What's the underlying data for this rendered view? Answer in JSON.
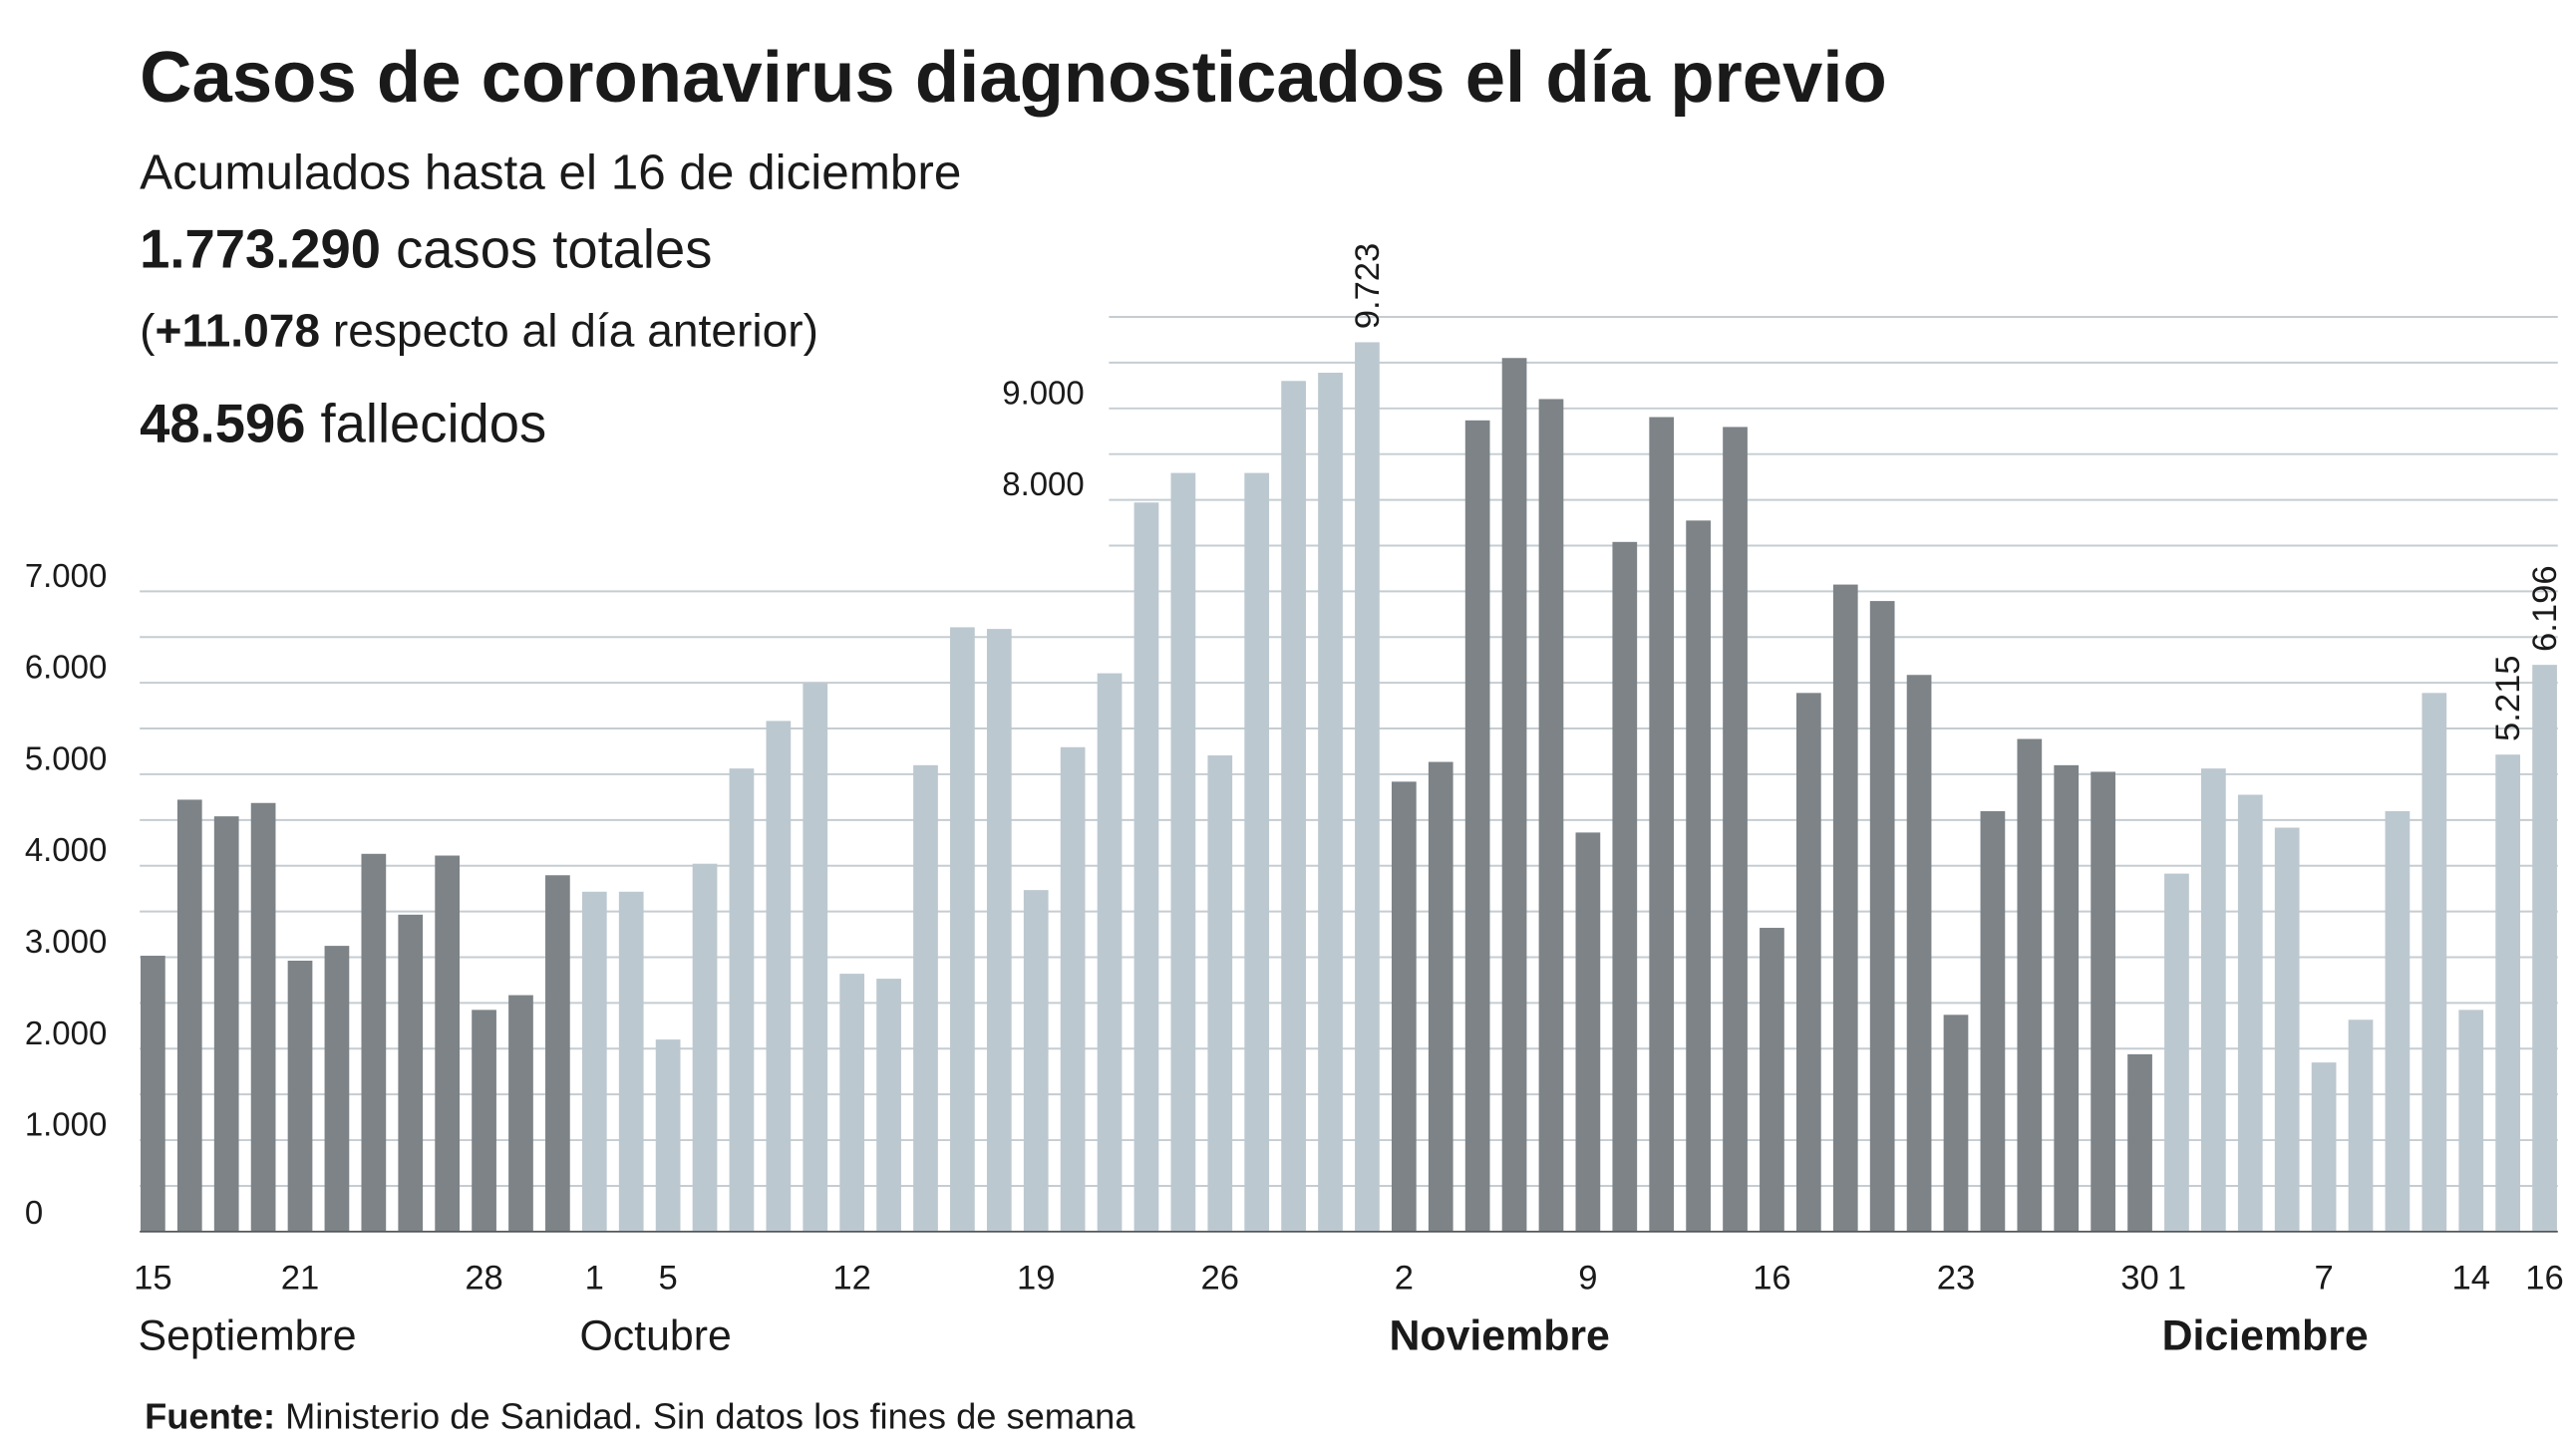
{
  "chart_data": {
    "type": "bar",
    "title": "Casos de coronavirus diagnosticados el día previo",
    "subtitle": "Acumulados hasta el 16 de diciembre",
    "stats": [
      [
        "",
        "1.773.290",
        " casos totales"
      ],
      [
        "(",
        "+11.078",
        " respecto al día anterior)"
      ],
      [
        "",
        "48.596",
        " fallecidos"
      ]
    ],
    "source": [
      "Fuente:",
      " Ministerio de Sanidad. Sin datos los fines de semana"
    ],
    "ylim": [
      0,
      10000
    ],
    "yticks": [
      {
        "value": 0,
        "label": "0"
      },
      {
        "value": 1000,
        "label": "1.000"
      },
      {
        "value": 2000,
        "label": "2.000"
      },
      {
        "value": 3000,
        "label": "3.000"
      },
      {
        "value": 4000,
        "label": "4.000"
      },
      {
        "value": 5000,
        "label": "5.000"
      },
      {
        "value": 6000,
        "label": "6.000"
      },
      {
        "value": 7000,
        "label": "7.000"
      },
      {
        "value": 8000,
        "label": "8.000"
      },
      {
        "value": 9000,
        "label": "9.000"
      }
    ],
    "minor_yticks": [
      500,
      1500,
      2500,
      3500,
      4500,
      5500,
      6500,
      7500,
      8500,
      9500,
      10000
    ],
    "grid": true,
    "months": [
      {
        "name": "Septiembre",
        "bold": false,
        "color": "#7d8387",
        "days": [
          "15",
          null,
          null,
          null,
          "21",
          null,
          null,
          null,
          null,
          "28",
          null,
          null
        ],
        "values": [
          3016,
          4722,
          4540,
          4686,
          2962,
          3124,
          4130,
          3465,
          4111,
          2424,
          2585,
          3896
        ]
      },
      {
        "name": "Octubre",
        "bold": false,
        "color": "#bcc8cf",
        "days": [
          "1",
          null,
          "5",
          null,
          null,
          null,
          null,
          "12",
          null,
          null,
          null,
          null,
          "19",
          null,
          null,
          null,
          null,
          "26",
          null,
          null,
          null,
          null
        ],
        "values": [
          3716,
          3716,
          2100,
          4022,
          5063,
          5583,
          5996,
          2819,
          2765,
          5099,
          6607,
          6589,
          3734,
          5296,
          6104,
          7971,
          8294,
          5206,
          8294,
          9300,
          9390,
          9723
        ],
        "value_labels": [
          null,
          null,
          null,
          null,
          null,
          null,
          null,
          null,
          null,
          null,
          null,
          null,
          null,
          null,
          null,
          null,
          null,
          null,
          null,
          null,
          null,
          "9.723"
        ]
      },
      {
        "name": "Noviembre",
        "bold": true,
        "color": "#7d8387",
        "days": [
          "2",
          null,
          null,
          null,
          null,
          "9",
          null,
          null,
          null,
          null,
          "16",
          null,
          null,
          null,
          null,
          "23",
          null,
          null,
          null,
          null,
          "30"
        ],
        "values": [
          4919,
          5135,
          8869,
          9551,
          9102,
          4363,
          7540,
          8905,
          7774,
          8797,
          3321,
          5889,
          7074,
          6894,
          6086,
          2370,
          4596,
          5386,
          5099,
          5027,
          1939
        ]
      },
      {
        "name": "Diciembre",
        "bold": true,
        "color": "#bcc8cf",
        "days": [
          "1",
          null,
          null,
          null,
          "7",
          null,
          null,
          null,
          "14",
          null,
          "16"
        ],
        "values": [
          3914,
          5063,
          4776,
          4416,
          1849,
          2316,
          4596,
          5889,
          2424,
          5215,
          6196
        ],
        "value_labels": [
          null,
          null,
          null,
          null,
          null,
          null,
          null,
          null,
          null,
          "5.215",
          "6.196"
        ]
      }
    ]
  }
}
